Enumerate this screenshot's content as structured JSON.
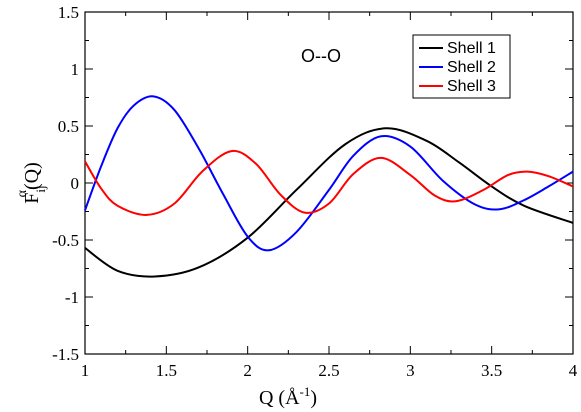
{
  "chart_data": {
    "type": "line",
    "annotation": "O--O",
    "xlabel": {
      "main": "Q (Å",
      "sup": "-1",
      "close": ")"
    },
    "ylabel": {
      "main": "F",
      "sub": "ij",
      "sup": "α",
      "rest": "(Q)"
    },
    "xlim": [
      1,
      4
    ],
    "ylim": [
      -1.5,
      1.5
    ],
    "xticks": [
      1,
      1.5,
      2,
      2.5,
      3,
      3.5,
      4
    ],
    "xtick_labels": [
      "1",
      "1.5",
      "2",
      "2.5",
      "3",
      "3.5",
      "4"
    ],
    "yticks": [
      -1.5,
      -1,
      -0.5,
      0,
      0.5,
      1,
      1.5
    ],
    "ytick_labels": [
      "-1.5",
      "-1",
      "-0.5",
      "0",
      "0.5",
      "1",
      "1.5"
    ],
    "grid": false,
    "legend_position": "top-right",
    "series": [
      {
        "name": "Shell 1",
        "color": "#000000",
        "x": [
          1.0,
          1.2,
          1.43,
          1.7,
          2.0,
          2.3,
          2.6,
          2.85,
          3.1,
          3.3,
          3.5,
          3.7,
          4.0
        ],
        "y": [
          -0.57,
          -0.77,
          -0.82,
          -0.74,
          -0.48,
          -0.06,
          0.34,
          0.48,
          0.37,
          0.18,
          -0.03,
          -0.2,
          -0.35
        ]
      },
      {
        "name": "Shell 2",
        "color": "#0000ff",
        "x": [
          1.0,
          1.1,
          1.2,
          1.3,
          1.42,
          1.55,
          1.7,
          1.85,
          2.0,
          2.13,
          2.3,
          2.5,
          2.65,
          2.82,
          3.0,
          3.2,
          3.4,
          3.55,
          3.7,
          3.85,
          4.0
        ],
        "y": [
          -0.24,
          0.15,
          0.48,
          0.68,
          0.76,
          0.64,
          0.3,
          -0.1,
          -0.47,
          -0.59,
          -0.43,
          -0.06,
          0.24,
          0.41,
          0.32,
          0.02,
          -0.19,
          -0.23,
          -0.15,
          -0.03,
          0.1
        ]
      },
      {
        "name": "Shell 3",
        "color": "#ff0000",
        "x": [
          1.0,
          1.1,
          1.2,
          1.38,
          1.55,
          1.72,
          1.9,
          2.05,
          2.2,
          2.35,
          2.5,
          2.65,
          2.82,
          3.0,
          3.15,
          3.28,
          3.45,
          3.6,
          3.72,
          3.85,
          4.0
        ],
        "y": [
          0.19,
          -0.05,
          -0.2,
          -0.28,
          -0.18,
          0.1,
          0.28,
          0.17,
          -0.1,
          -0.26,
          -0.18,
          0.08,
          0.22,
          0.07,
          -0.11,
          -0.16,
          -0.06,
          0.07,
          0.1,
          0.06,
          -0.03
        ]
      }
    ]
  }
}
